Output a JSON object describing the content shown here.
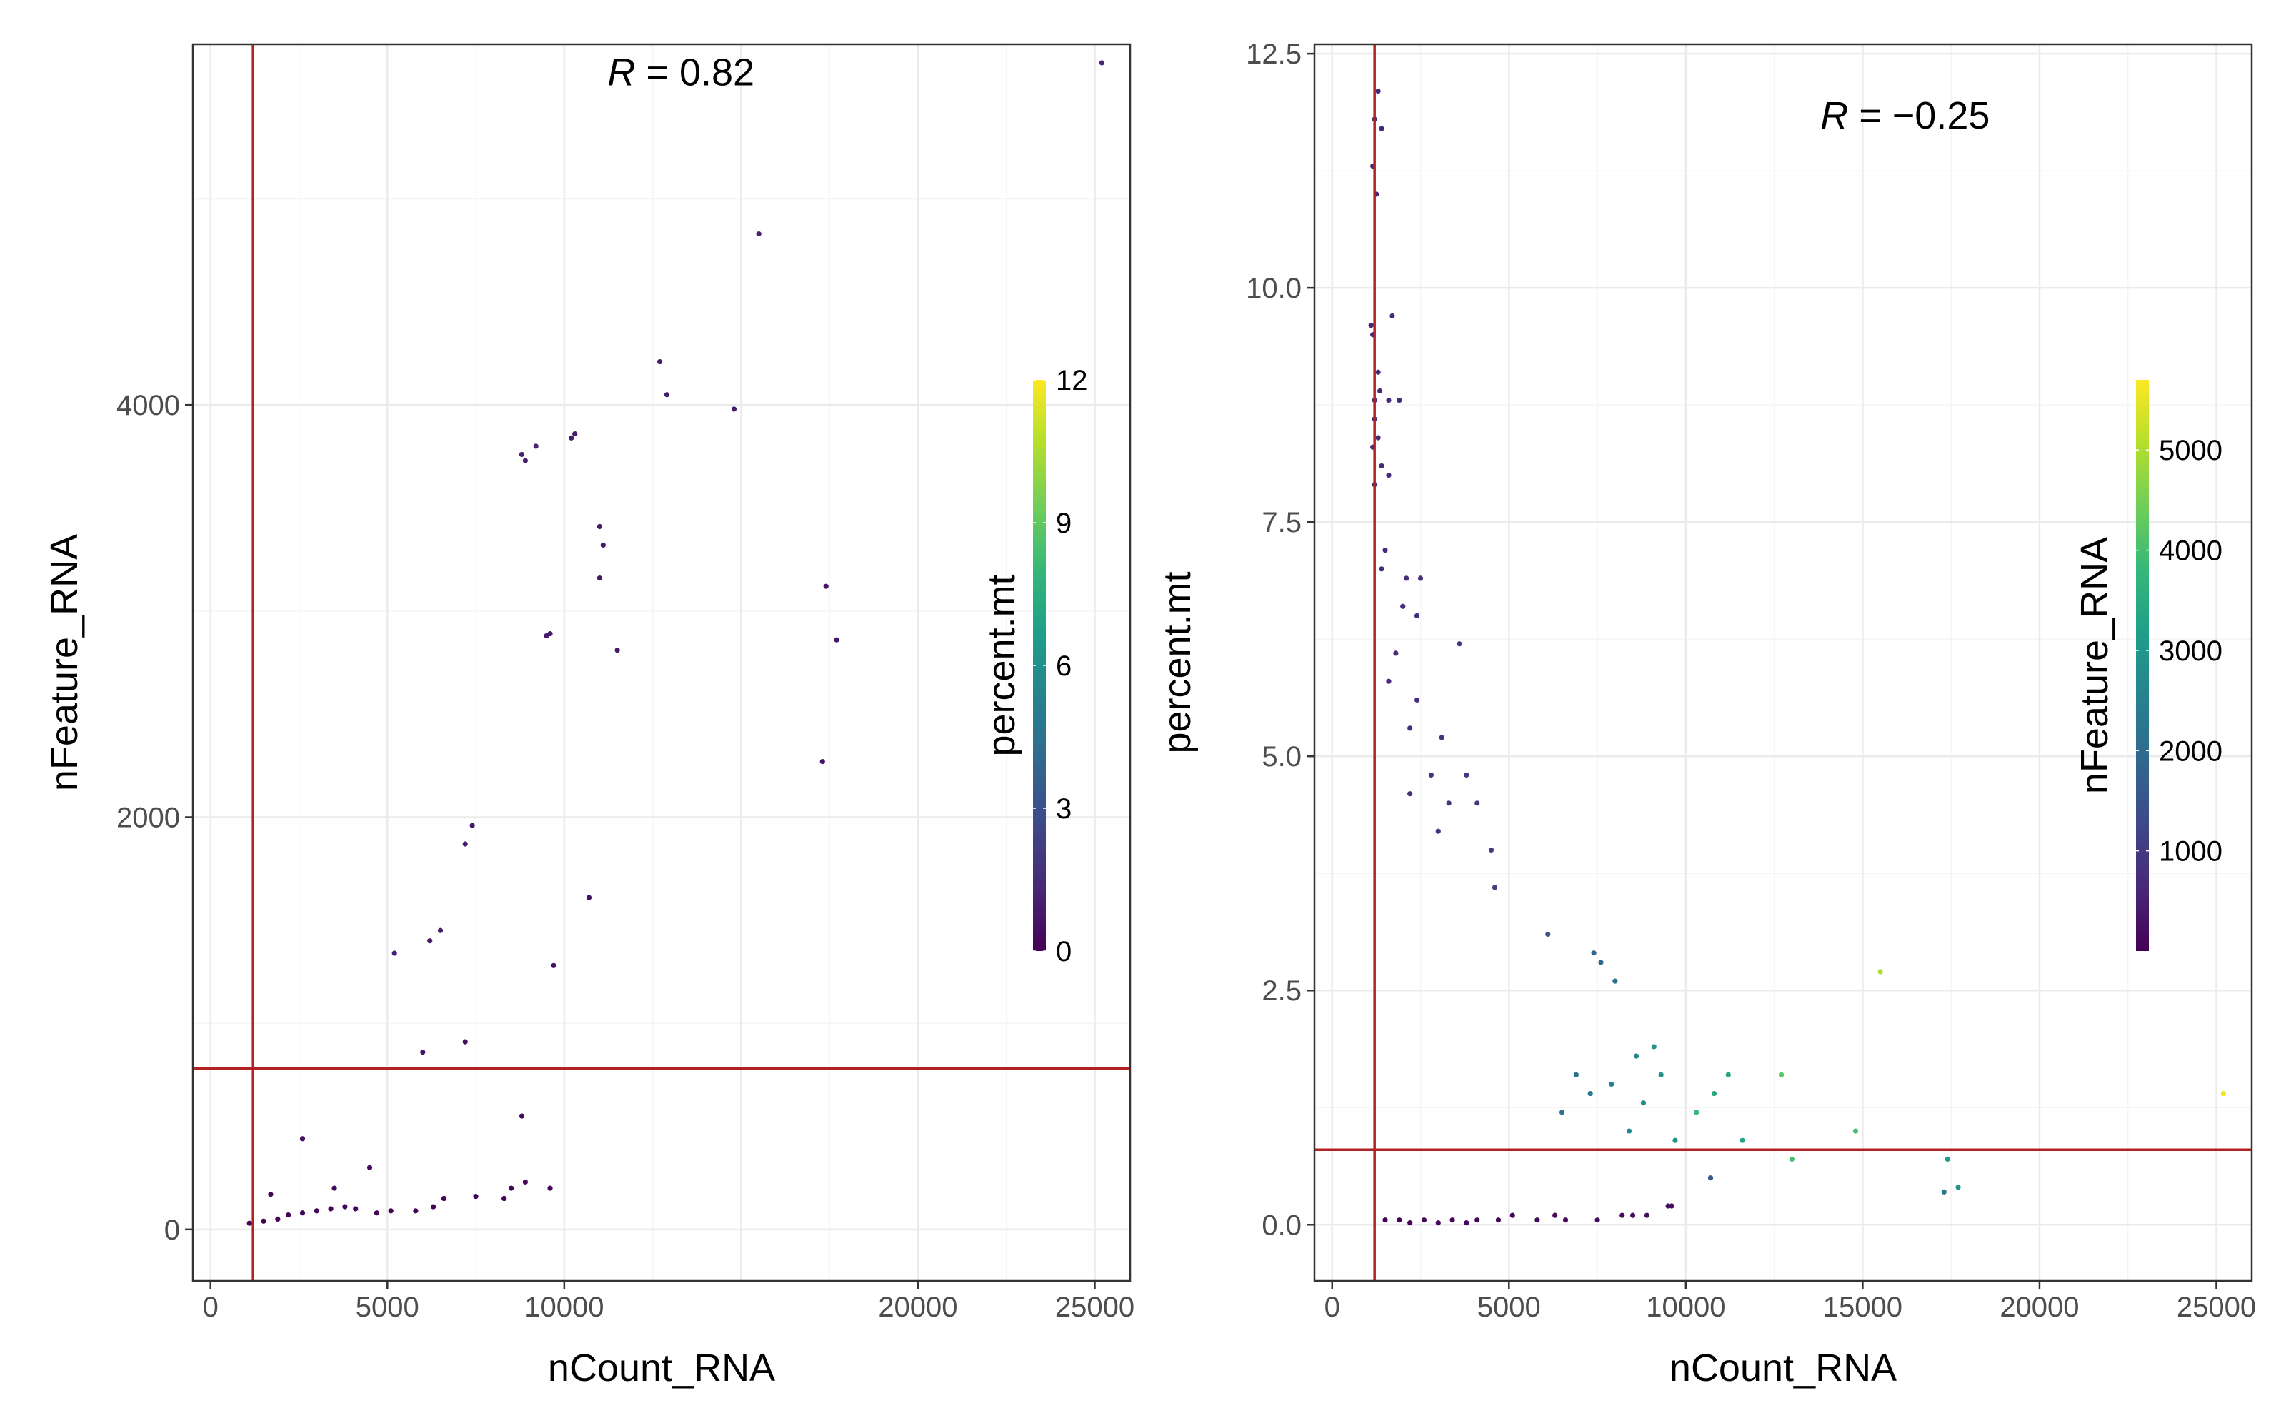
{
  "colors": {
    "panel_border": "#333333",
    "grid_major": "#ebebeb",
    "grid_minor": "#f5f5f5",
    "threshold_line": "#b22222",
    "viridis": [
      "#440154",
      "#482878",
      "#3e4989",
      "#31688e",
      "#26828e",
      "#1f9e89",
      "#35b779",
      "#6ece58",
      "#b5de2b",
      "#fde725"
    ]
  },
  "chart_data": [
    {
      "type": "scatter",
      "xlabel": "nCount_RNA",
      "ylabel": "nFeature_RNA",
      "xlim": [
        -500,
        26000
      ],
      "ylim": [
        -250,
        5750
      ],
      "xticks": [
        0,
        5000,
        10000,
        20000,
        25000
      ],
      "xtick_labels": [
        "0",
        "5000",
        "10000",
        "20000",
        "25000"
      ],
      "xgrid": [
        0,
        5000,
        10000,
        15000,
        20000,
        25000
      ],
      "yticks": [
        0,
        2000,
        4000
      ],
      "ytick_labels": [
        "0",
        "2000",
        "4000"
      ],
      "ygrid": [
        0,
        2000,
        4000
      ],
      "annotation": {
        "label": "R",
        "text": " = 0.82",
        "x": 13300,
        "y": 5550
      },
      "vline": 1200,
      "hline": 780,
      "color_by": {
        "title": "percent.mt",
        "range": [
          0,
          12
        ],
        "ticks": [
          0,
          3,
          6,
          9,
          12
        ],
        "tick_labels": [
          "0",
          "3",
          "6",
          "9",
          "12"
        ]
      },
      "points": [
        [
          25200,
          5660,
          1.2
        ],
        [
          15500,
          4830,
          1.1
        ],
        [
          12700,
          4210,
          1.0
        ],
        [
          12900,
          4050,
          1.0
        ],
        [
          14800,
          3980,
          0.9
        ],
        [
          10300,
          3860,
          1.0
        ],
        [
          10200,
          3840,
          1.0
        ],
        [
          9200,
          3800,
          1.2
        ],
        [
          8800,
          3760,
          1.1
        ],
        [
          8900,
          3730,
          1.0
        ],
        [
          11000,
          3410,
          0.8
        ],
        [
          11100,
          3320,
          0.8
        ],
        [
          11000,
          3160,
          0.8
        ],
        [
          9600,
          2890,
          0.9
        ],
        [
          9500,
          2880,
          0.9
        ],
        [
          11500,
          2810,
          0.8
        ],
        [
          17400,
          3120,
          0.8
        ],
        [
          17700,
          2860,
          0.7
        ],
        [
          17300,
          2270,
          0.7
        ],
        [
          10700,
          1610,
          0.5
        ],
        [
          9700,
          1280,
          0.6
        ],
        [
          7400,
          1960,
          0.8
        ],
        [
          7200,
          1870,
          0.9
        ],
        [
          6500,
          1450,
          0.9
        ],
        [
          6200,
          1400,
          0.8
        ],
        [
          5200,
          1340,
          1.0
        ],
        [
          7200,
          910,
          0.5
        ],
        [
          6000,
          860,
          0.6
        ],
        [
          8800,
          550,
          0.3
        ],
        [
          2600,
          440,
          0.5
        ],
        [
          4500,
          300,
          0.3
        ],
        [
          3500,
          200,
          0.2
        ],
        [
          1700,
          170,
          0.2
        ],
        [
          8900,
          230,
          0.1
        ],
        [
          9600,
          200,
          0.1
        ],
        [
          8500,
          200,
          0.1
        ],
        [
          8300,
          150,
          0.1
        ],
        [
          7500,
          160,
          0.1
        ],
        [
          6600,
          150,
          0.1
        ],
        [
          6300,
          110,
          0.1
        ],
        [
          5800,
          90,
          0.1
        ],
        [
          5100,
          90,
          0.1
        ],
        [
          4700,
          80,
          0.1
        ],
        [
          4100,
          100,
          0.1
        ],
        [
          3800,
          110,
          0.1
        ],
        [
          3400,
          100,
          0.1
        ],
        [
          3000,
          90,
          0.1
        ],
        [
          2600,
          80,
          0.1
        ],
        [
          2200,
          70,
          0.1
        ],
        [
          1900,
          50,
          0.1
        ],
        [
          1500,
          40,
          0.1
        ],
        [
          1100,
          30,
          0.1
        ]
      ]
    },
    {
      "type": "scatter",
      "xlabel": "nCount_RNA",
      "ylabel": "percent.mt",
      "xlim": [
        -500,
        26000
      ],
      "ylim": [
        -0.6,
        12.6
      ],
      "xticks": [
        0,
        5000,
        10000,
        15000,
        20000,
        25000
      ],
      "xtick_labels": [
        "0",
        "5000",
        "10000",
        "15000",
        "20000",
        "25000"
      ],
      "xgrid": [
        0,
        5000,
        10000,
        15000,
        20000,
        25000
      ],
      "yticks": [
        0,
        2.5,
        5,
        7.5,
        10,
        12.5
      ],
      "ytick_labels": [
        "0.0",
        "2.5",
        "5.0",
        "7.5",
        "10.0",
        "12.5"
      ],
      "ygrid": [
        0,
        2.5,
        5,
        7.5,
        10,
        12.5
      ],
      "annotation": {
        "label": "R",
        "text": " = −0.25",
        "x": 16200,
        "y": 11.7
      },
      "vline": 1200,
      "hline": 0.8,
      "color_by": {
        "title": "nFeature_RNA",
        "range": [
          0,
          5700
        ],
        "ticks": [
          1000,
          2000,
          3000,
          4000,
          5000
        ],
        "tick_labels": [
          "1000",
          "2000",
          "3000",
          "4000",
          "5000"
        ]
      },
      "points": [
        [
          1300,
          12.1,
          600
        ],
        [
          1200,
          11.8,
          600
        ],
        [
          1400,
          11.7,
          620
        ],
        [
          1150,
          11.3,
          600
        ],
        [
          1250,
          11.0,
          610
        ],
        [
          1100,
          9.6,
          620
        ],
        [
          1150,
          9.5,
          650
        ],
        [
          1700,
          9.7,
          700
        ],
        [
          1300,
          9.1,
          650
        ],
        [
          1350,
          8.9,
          650
        ],
        [
          1600,
          8.8,
          700
        ],
        [
          1900,
          8.8,
          700
        ],
        [
          1200,
          8.8,
          620
        ],
        [
          1200,
          8.6,
          630
        ],
        [
          1300,
          8.4,
          640
        ],
        [
          1150,
          8.3,
          620
        ],
        [
          1400,
          8.1,
          650
        ],
        [
          1600,
          8.0,
          680
        ],
        [
          1200,
          7.9,
          640
        ],
        [
          1500,
          7.2,
          670
        ],
        [
          1400,
          7.0,
          660
        ],
        [
          2100,
          6.9,
          720
        ],
        [
          2500,
          6.9,
          760
        ],
        [
          2000,
          6.6,
          710
        ],
        [
          2400,
          6.5,
          750
        ],
        [
          3600,
          6.2,
          900
        ],
        [
          1800,
          6.1,
          700
        ],
        [
          2400,
          5.6,
          760
        ],
        [
          1600,
          5.8,
          690
        ],
        [
          2200,
          5.3,
          740
        ],
        [
          3100,
          5.2,
          850
        ],
        [
          2800,
          4.8,
          800
        ],
        [
          3800,
          4.8,
          950
        ],
        [
          4100,
          4.5,
          1000
        ],
        [
          3300,
          4.5,
          880
        ],
        [
          2200,
          4.6,
          740
        ],
        [
          4500,
          4.0,
          1050
        ],
        [
          3000,
          4.2,
          830
        ],
        [
          4600,
          3.6,
          1100
        ],
        [
          6100,
          3.1,
          1500
        ],
        [
          7400,
          2.9,
          1900
        ],
        [
          7600,
          2.8,
          1950
        ],
        [
          8000,
          2.6,
          2050
        ],
        [
          15500,
          2.7,
          5000
        ],
        [
          25200,
          1.4,
          5600
        ],
        [
          12700,
          1.6,
          4200
        ],
        [
          11200,
          1.6,
          3400
        ],
        [
          14800,
          1.0,
          4000
        ],
        [
          10300,
          1.2,
          3800
        ],
        [
          10800,
          1.4,
          3400
        ],
        [
          11600,
          0.9,
          3300
        ],
        [
          10700,
          0.5,
          1600
        ],
        [
          13000,
          0.7,
          4000
        ],
        [
          17400,
          0.7,
          3100
        ],
        [
          17700,
          0.4,
          2850
        ],
        [
          17300,
          0.35,
          2300
        ],
        [
          9600,
          0.2,
          200
        ],
        [
          9500,
          0.2,
          200
        ],
        [
          8900,
          0.1,
          230
        ],
        [
          8500,
          0.1,
          200
        ],
        [
          8200,
          0.1,
          150
        ],
        [
          7500,
          0.05,
          160
        ],
        [
          6600,
          0.05,
          150
        ],
        [
          6300,
          0.1,
          110
        ],
        [
          5800,
          0.05,
          90
        ],
        [
          5100,
          0.1,
          90
        ],
        [
          4700,
          0.05,
          80
        ],
        [
          4100,
          0.05,
          100
        ],
        [
          3800,
          0.02,
          110
        ],
        [
          3400,
          0.05,
          100
        ],
        [
          3000,
          0.02,
          90
        ],
        [
          2600,
          0.05,
          80
        ],
        [
          2200,
          0.02,
          70
        ],
        [
          1900,
          0.05,
          50
        ],
        [
          1500,
          0.05,
          40
        ],
        [
          9300,
          1.6,
          2900
        ],
        [
          9100,
          1.9,
          2850
        ],
        [
          8800,
          1.3,
          2700
        ],
        [
          8400,
          1.0,
          2600
        ],
        [
          7900,
          1.5,
          2500
        ],
        [
          7300,
          1.4,
          2300
        ],
        [
          6900,
          1.6,
          2200
        ],
        [
          6500,
          1.2,
          2100
        ],
        [
          9700,
          0.9,
          2900
        ],
        [
          8600,
          1.8,
          2650
        ]
      ]
    }
  ]
}
